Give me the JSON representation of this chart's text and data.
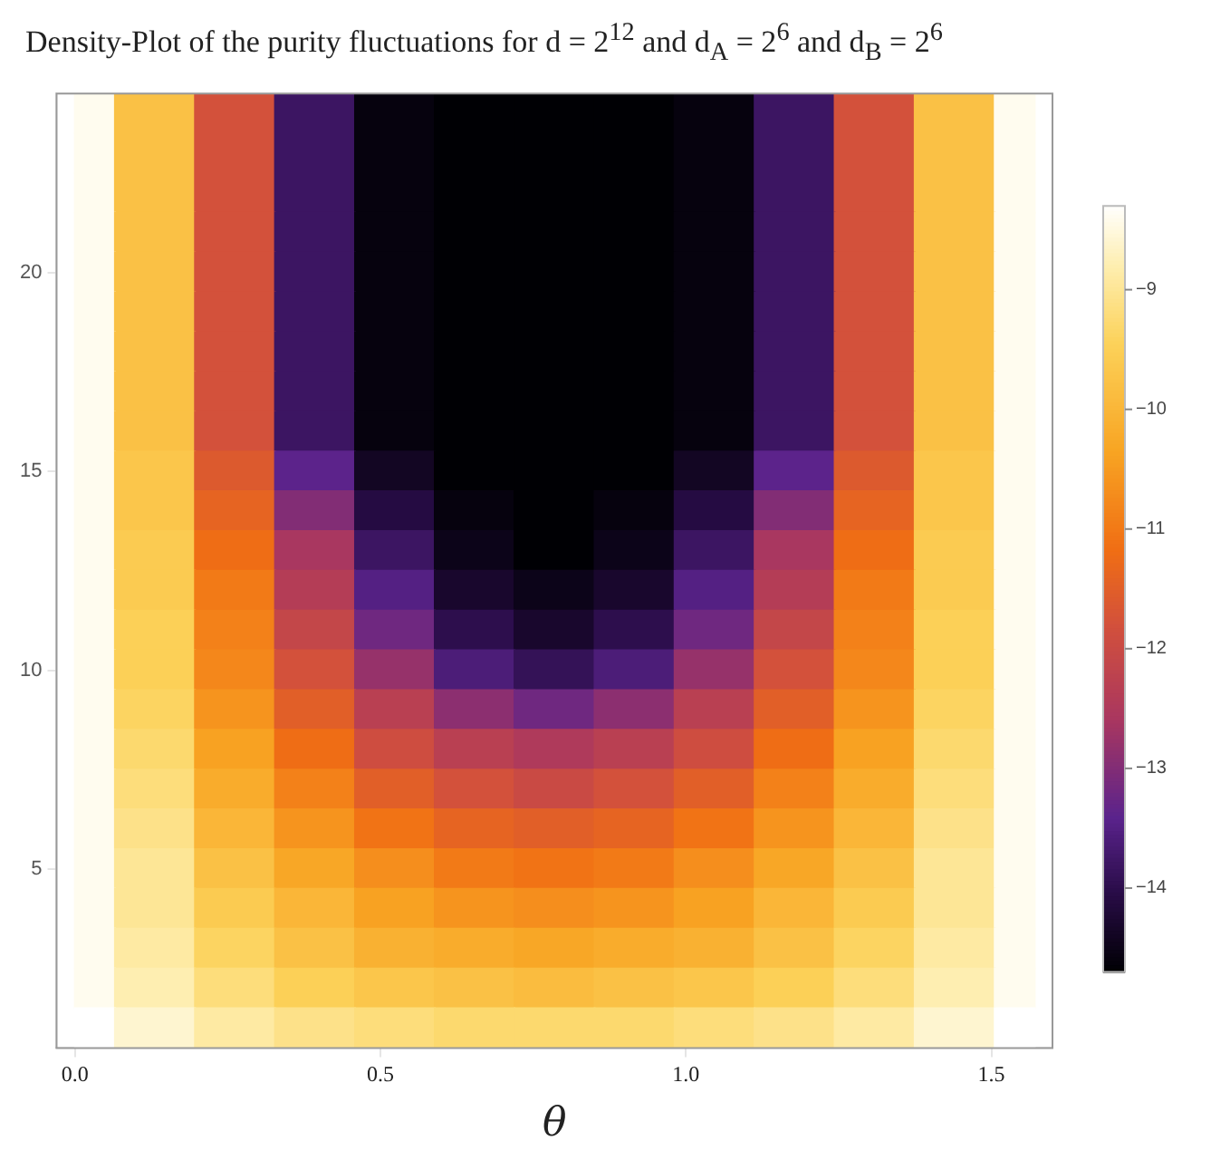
{
  "chart_data": {
    "type": "heatmap",
    "title": "Density-Plot of the purity fluctuations for d = 2$^{12}$ and d$_{A}$ = 2$^{6}$ and d$_{B}$ = 2$^{6}$",
    "xlabel": "θ",
    "x": [
      0,
      0.131,
      0.262,
      0.393,
      0.524,
      0.654,
      0.785,
      0.916,
      1.047,
      1.178,
      1.309,
      1.44,
      1.571
    ],
    "y": [
      24,
      23,
      22,
      21,
      20,
      19,
      18,
      17,
      16,
      15,
      14,
      13,
      12,
      11,
      10,
      9,
      8,
      7,
      6,
      5,
      4,
      3,
      2,
      1
    ],
    "cells": [
      [
        -8.4,
        -9.8,
        -11.8,
        -13.8,
        -14.6,
        -14.7,
        -14.7,
        -14.7,
        -14.6,
        -13.8,
        -11.8,
        -9.8,
        -8.4
      ],
      [
        -8.4,
        -9.8,
        -11.8,
        -13.8,
        -14.6,
        -14.7,
        -14.7,
        -14.7,
        -14.6,
        -13.8,
        -11.8,
        -9.8,
        -8.4
      ],
      [
        -8.4,
        -9.8,
        -11.8,
        -13.8,
        -14.6,
        -14.7,
        -14.7,
        -14.7,
        -14.6,
        -13.8,
        -11.8,
        -9.8,
        -8.4
      ],
      [
        -8.4,
        -9.8,
        -11.8,
        -13.8,
        -14.6,
        -14.7,
        -14.7,
        -14.7,
        -14.6,
        -13.8,
        -11.8,
        -9.8,
        -8.4
      ],
      [
        -8.4,
        -9.8,
        -11.8,
        -13.8,
        -14.6,
        -14.7,
        -14.7,
        -14.7,
        -14.6,
        -13.8,
        -11.8,
        -9.8,
        -8.4
      ],
      [
        -8.4,
        -9.8,
        -11.8,
        -13.8,
        -14.6,
        -14.7,
        -14.7,
        -14.7,
        -14.6,
        -13.8,
        -11.8,
        -9.8,
        -8.4
      ],
      [
        -8.4,
        -9.8,
        -11.8,
        -13.8,
        -14.6,
        -14.7,
        -14.7,
        -14.7,
        -14.6,
        -13.8,
        -11.8,
        -9.8,
        -8.4
      ],
      [
        -8.4,
        -9.8,
        -11.8,
        -13.8,
        -14.6,
        -14.7,
        -14.7,
        -14.7,
        -14.6,
        -13.8,
        -11.8,
        -9.8,
        -8.4
      ],
      [
        -8.4,
        -9.8,
        -11.8,
        -13.8,
        -14.6,
        -14.7,
        -14.7,
        -14.7,
        -14.6,
        -13.8,
        -11.8,
        -9.8,
        -8.4
      ],
      [
        -8.4,
        -9.7,
        -11.6,
        -13.4,
        -14.4,
        -14.7,
        -14.7,
        -14.7,
        -14.4,
        -13.4,
        -11.6,
        -9.7,
        -8.4
      ],
      [
        -8.4,
        -9.7,
        -11.4,
        -13.0,
        -14.1,
        -14.6,
        -14.7,
        -14.6,
        -14.1,
        -13.0,
        -11.4,
        -9.7,
        -8.4
      ],
      [
        -8.4,
        -9.6,
        -11.2,
        -12.6,
        -13.8,
        -14.5,
        -14.7,
        -14.5,
        -13.8,
        -12.6,
        -11.2,
        -9.6,
        -8.4
      ],
      [
        -8.4,
        -9.6,
        -11.0,
        -12.4,
        -13.5,
        -14.3,
        -14.5,
        -14.3,
        -13.5,
        -12.4,
        -11.0,
        -9.6,
        -8.4
      ],
      [
        -8.4,
        -9.5,
        -10.9,
        -12.1,
        -13.2,
        -14.0,
        -14.3,
        -14.0,
        -13.2,
        -12.1,
        -10.9,
        -9.5,
        -8.4
      ],
      [
        -8.4,
        -9.5,
        -10.8,
        -11.8,
        -12.8,
        -13.6,
        -13.9,
        -13.6,
        -12.8,
        -11.8,
        -10.8,
        -9.5,
        -8.4
      ],
      [
        -8.4,
        -9.4,
        -10.6,
        -11.5,
        -12.3,
        -12.9,
        -13.2,
        -12.9,
        -12.3,
        -11.5,
        -10.6,
        -9.4,
        -8.4
      ],
      [
        -8.4,
        -9.3,
        -10.4,
        -11.2,
        -11.9,
        -12.3,
        -12.5,
        -12.3,
        -11.9,
        -11.2,
        -10.4,
        -9.3,
        -8.4
      ],
      [
        -8.4,
        -9.2,
        -10.2,
        -10.9,
        -11.5,
        -11.8,
        -12.0,
        -11.8,
        -11.5,
        -10.9,
        -10.2,
        -9.2,
        -8.4
      ],
      [
        -8.4,
        -9.1,
        -10.0,
        -10.6,
        -11.1,
        -11.4,
        -11.5,
        -11.4,
        -11.1,
        -10.6,
        -10.0,
        -9.1,
        -8.4
      ],
      [
        -8.4,
        -9.0,
        -9.8,
        -10.3,
        -10.7,
        -11.0,
        -11.1,
        -11.0,
        -10.7,
        -10.3,
        -9.8,
        -9.0,
        -8.4
      ],
      [
        -8.4,
        -9.0,
        -9.6,
        -10.0,
        -10.4,
        -10.6,
        -10.7,
        -10.6,
        -10.4,
        -10.0,
        -9.6,
        -9.0,
        -8.4
      ],
      [
        -8.4,
        -8.9,
        -9.4,
        -9.8,
        -10.1,
        -10.2,
        -10.3,
        -10.2,
        -10.1,
        -9.8,
        -9.4,
        -8.9,
        -8.4
      ],
      [
        -8.4,
        -8.8,
        -9.2,
        -9.5,
        -9.7,
        -9.8,
        -9.9,
        -9.8,
        -9.7,
        -9.5,
        -9.2,
        -8.8,
        -8.4
      ],
      [
        -8.3,
        -8.6,
        -8.9,
        -9.1,
        -9.2,
        -9.3,
        -9.3,
        -9.3,
        -9.2,
        -9.1,
        -8.9,
        -8.6,
        -8.3
      ]
    ],
    "xlim": [
      -0.03,
      1.6
    ],
    "ylim": [
      0.5,
      24.5
    ],
    "xticks": [
      {
        "value": 0,
        "label": "0.0"
      },
      {
        "value": 0.5,
        "label": "0.5"
      },
      {
        "value": 1,
        "label": "1.0"
      },
      {
        "value": 1.5,
        "label": "1.5"
      }
    ],
    "yticks": [
      5,
      10,
      15,
      20
    ],
    "clim": [
      -14.7,
      -8.3
    ],
    "cticks": [
      -9,
      -10,
      -11,
      -12,
      -13,
      -14
    ]
  }
}
